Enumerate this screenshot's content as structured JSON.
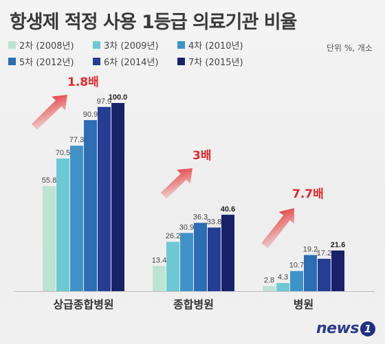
{
  "title": "항생제 적정 사용 1등급 의료기관 비율",
  "unit": "단위 %, 개소",
  "logo": {
    "text": "news",
    "badge": "1"
  },
  "chart_data": {
    "type": "bar",
    "title": "항생제 적정 사용 1등급 의료기관 비율",
    "categories": [
      "상급종합병원",
      "종합병원",
      "병원"
    ],
    "series": [
      {
        "name": "2차 (2008년)",
        "color": "#bde3d3",
        "values": [
          55.8,
          13.4,
          2.8
        ]
      },
      {
        "name": "3차 (2009년)",
        "color": "#6cc8d3",
        "values": [
          70.5,
          26.2,
          4.3
        ]
      },
      {
        "name": "4차 (2010년)",
        "color": "#3f93c9",
        "values": [
          77.3,
          30.9,
          10.7
        ]
      },
      {
        "name": "5차 (2012년)",
        "color": "#2c6db4",
        "values": [
          90.9,
          36.3,
          19.2
        ]
      },
      {
        "name": "6차 (2014년)",
        "color": "#253e94",
        "values": [
          97.9,
          33.8,
          17.2
        ]
      },
      {
        "name": "7차 (2015년)",
        "color": "#17226b",
        "values": [
          100.0,
          40.6,
          21.6
        ]
      }
    ],
    "value_labels": [
      [
        "55.8",
        "70.5",
        "77.3",
        "90.9",
        "97.9",
        "100.0"
      ],
      [
        "13.4",
        "26.2",
        "30.9",
        "36.3",
        "33.8",
        "40.6"
      ],
      [
        "2.8",
        "4.3",
        "10.7",
        "19.2",
        "17.2",
        "21.6"
      ]
    ],
    "annotations": [
      "1.8배",
      "3배",
      "7.7배"
    ],
    "ylim": [
      0,
      100
    ],
    "legend_position": "top-left",
    "grid": false
  }
}
